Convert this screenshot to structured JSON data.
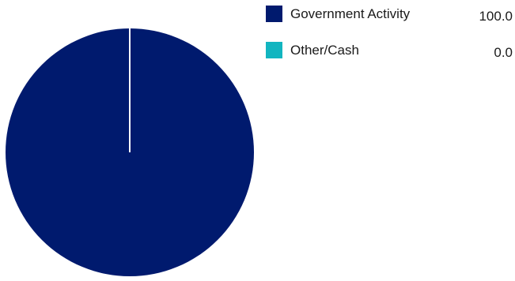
{
  "chart_data": {
    "type": "pie",
    "title": "",
    "categories": [
      "Government Activity",
      "Other/Cash"
    ],
    "values": [
      100.0,
      0.0
    ],
    "value_labels": [
      "100.0",
      "0.0"
    ],
    "colors": [
      "#001a6e",
      "#12b5c0"
    ],
    "legend_position": "right",
    "grid": false
  }
}
